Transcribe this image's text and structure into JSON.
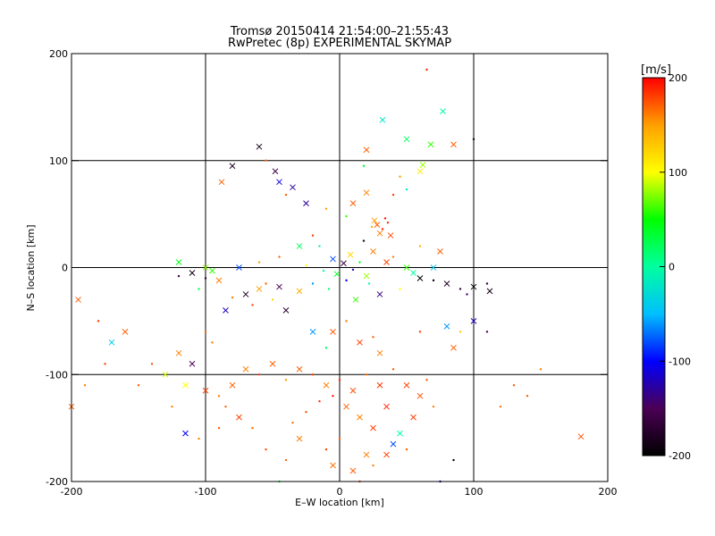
{
  "chart_data": {
    "type": "scatter",
    "title": "Tromsø 20150414 21:54:00–21:55:43",
    "subtitle": "RwPretec (8p) EXPERIMENTAL SKYMAP",
    "xlabel": "E–W location [km]",
    "ylabel": "N–S location [km]",
    "xlim": [
      -200,
      200
    ],
    "ylim": [
      -200,
      200
    ],
    "x_ticks": [
      -200,
      -100,
      0,
      100,
      200
    ],
    "y_ticks": [
      -200,
      -100,
      0,
      100,
      200
    ],
    "grid": true,
    "colorbar": {
      "label": "[m/s]",
      "range": [
        -200,
        200
      ],
      "ticks": [
        200,
        100,
        0,
        -100,
        -200
      ],
      "colormap": [
        "#000000",
        "#4b0055",
        "#0000ff",
        "#00bfff",
        "#00ff9f",
        "#00ff00",
        "#ffff00",
        "#ff9f00",
        "#ff0000"
      ]
    },
    "markers": [
      "x",
      "dot"
    ],
    "points": [
      [
        3,
        4,
        -160,
        "x"
      ],
      [
        10,
        -2,
        -120,
        "dot"
      ],
      [
        -5,
        8,
        -80,
        "x"
      ],
      [
        15,
        5,
        40,
        "dot"
      ],
      [
        20,
        -8,
        80,
        "x"
      ],
      [
        -12,
        -3,
        0,
        "dot"
      ],
      [
        8,
        12,
        120,
        "x"
      ],
      [
        -20,
        -15,
        -60,
        "dot"
      ],
      [
        25,
        15,
        160,
        "x"
      ],
      [
        -8,
        -20,
        20,
        "dot"
      ],
      [
        30,
        -25,
        -140,
        "x"
      ],
      [
        -25,
        2,
        100,
        "dot"
      ],
      [
        12,
        -30,
        60,
        "x"
      ],
      [
        -15,
        20,
        -20,
        "dot"
      ],
      [
        35,
        5,
        180,
        "x"
      ],
      [
        5,
        -12,
        -100,
        "dot"
      ],
      [
        -30,
        -22,
        140,
        "x"
      ],
      [
        18,
        25,
        -180,
        "dot"
      ],
      [
        -2,
        -6,
        40,
        "x"
      ],
      [
        22,
        -15,
        0,
        "dot"
      ],
      [
        28,
        40,
        170,
        "x"
      ],
      [
        32,
        36,
        190,
        "dot"
      ],
      [
        26,
        44,
        150,
        "x"
      ],
      [
        36,
        42,
        185,
        "dot"
      ],
      [
        30,
        32,
        160,
        "x"
      ],
      [
        24,
        38,
        140,
        "dot"
      ],
      [
        38,
        30,
        175,
        "x"
      ],
      [
        34,
        46,
        195,
        "dot"
      ],
      [
        -60,
        -20,
        150,
        "x"
      ],
      [
        -55,
        -15,
        170,
        "dot"
      ],
      [
        -70,
        -25,
        -180,
        "x"
      ],
      [
        -50,
        -30,
        120,
        "dot"
      ],
      [
        -45,
        -18,
        -150,
        "x"
      ],
      [
        -65,
        -35,
        180,
        "dot"
      ],
      [
        -40,
        -40,
        -170,
        "x"
      ],
      [
        -80,
        -28,
        160,
        "dot"
      ],
      [
        60,
        -10,
        -200,
        "x"
      ],
      [
        70,
        -12,
        -190,
        "dot"
      ],
      [
        80,
        -15,
        -180,
        "x"
      ],
      [
        90,
        -20,
        -160,
        "dot"
      ],
      [
        100,
        -18,
        -195,
        "x"
      ],
      [
        110,
        -15,
        -170,
        "dot"
      ],
      [
        112,
        -22,
        -185,
        "x"
      ],
      [
        95,
        -25,
        -140,
        "dot"
      ],
      [
        -110,
        -5,
        -190,
        "x"
      ],
      [
        -100,
        -10,
        -175,
        "dot"
      ],
      [
        -95,
        -3,
        60,
        "x"
      ],
      [
        -120,
        -8,
        -160,
        "dot"
      ],
      [
        -90,
        -12,
        160,
        "x"
      ],
      [
        -105,
        -20,
        30,
        "dot"
      ],
      [
        -30,
        -95,
        170,
        "x"
      ],
      [
        -20,
        -100,
        180,
        "dot"
      ],
      [
        -10,
        -110,
        160,
        "x"
      ],
      [
        0,
        -105,
        190,
        "dot"
      ],
      [
        10,
        -115,
        175,
        "x"
      ],
      [
        20,
        -100,
        165,
        "dot"
      ],
      [
        30,
        -110,
        185,
        "x"
      ],
      [
        -40,
        -105,
        150,
        "dot"
      ],
      [
        -50,
        -90,
        170,
        "x"
      ],
      [
        -60,
        -100,
        180,
        "dot"
      ],
      [
        -70,
        -95,
        160,
        "x"
      ],
      [
        40,
        -95,
        170,
        "dot"
      ],
      [
        50,
        -110,
        180,
        "x"
      ],
      [
        -5,
        -120,
        195,
        "dot"
      ],
      [
        5,
        -130,
        170,
        "x"
      ],
      [
        -15,
        -125,
        185,
        "dot"
      ],
      [
        15,
        -140,
        160,
        "x"
      ],
      [
        -25,
        -135,
        175,
        "dot"
      ],
      [
        25,
        -150,
        180,
        "x"
      ],
      [
        -35,
        -145,
        165,
        "dot"
      ],
      [
        35,
        -130,
        190,
        "x"
      ],
      [
        0,
        -160,
        170,
        "dot"
      ],
      [
        20,
        -175,
        160,
        "x"
      ],
      [
        -10,
        -170,
        180,
        "dot"
      ],
      [
        -80,
        -110,
        170,
        "x"
      ],
      [
        -90,
        -120,
        160,
        "dot"
      ],
      [
        -100,
        -115,
        180,
        "x"
      ],
      [
        -85,
        -130,
        170,
        "dot"
      ],
      [
        60,
        -120,
        175,
        "x"
      ],
      [
        70,
        -130,
        160,
        "dot"
      ],
      [
        55,
        -140,
        180,
        "x"
      ],
      [
        65,
        -105,
        170,
        "dot"
      ],
      [
        -120,
        -80,
        160,
        "x"
      ],
      [
        -140,
        -90,
        175,
        "dot"
      ],
      [
        -160,
        -60,
        170,
        "x"
      ],
      [
        -180,
        -50,
        180,
        "dot"
      ],
      [
        -195,
        -30,
        170,
        "x"
      ],
      [
        -170,
        -70,
        -40,
        "x"
      ],
      [
        -130,
        -100,
        90,
        "x"
      ],
      [
        -200,
        -130,
        170,
        "x"
      ],
      [
        -190,
        -110,
        160,
        "dot"
      ],
      [
        -175,
        -90,
        180,
        "dot"
      ],
      [
        -150,
        -110,
        170,
        "dot"
      ],
      [
        -125,
        -130,
        160,
        "dot"
      ],
      [
        180,
        -158,
        175,
        "x"
      ],
      [
        140,
        -120,
        170,
        "dot"
      ],
      [
        150,
        -95,
        160,
        "dot"
      ],
      [
        120,
        -130,
        165,
        "dot"
      ],
      [
        130,
        -110,
        170,
        "dot"
      ],
      [
        65,
        185,
        190,
        "dot"
      ],
      [
        77,
        146,
        0,
        "x"
      ],
      [
        32,
        138,
        -20,
        "x"
      ],
      [
        50,
        120,
        20,
        "x"
      ],
      [
        68,
        115,
        60,
        "x"
      ],
      [
        100,
        120,
        -200,
        "dot"
      ],
      [
        85,
        115,
        170,
        "x"
      ],
      [
        -45,
        80,
        -110,
        "x"
      ],
      [
        -35,
        75,
        -130,
        "x"
      ],
      [
        -48,
        90,
        -160,
        "x"
      ],
      [
        -55,
        100,
        170,
        "dot"
      ],
      [
        -60,
        113,
        -190,
        "x"
      ],
      [
        -80,
        95,
        -180,
        "x"
      ],
      [
        -88,
        80,
        170,
        "x"
      ],
      [
        -40,
        68,
        170,
        "dot"
      ],
      [
        -25,
        60,
        -130,
        "x"
      ],
      [
        -10,
        55,
        150,
        "dot"
      ],
      [
        5,
        48,
        60,
        "dot"
      ],
      [
        10,
        60,
        170,
        "x"
      ],
      [
        20,
        70,
        160,
        "x"
      ],
      [
        40,
        68,
        180,
        "dot"
      ],
      [
        60,
        90,
        110,
        "x"
      ],
      [
        62,
        96,
        80,
        "x"
      ],
      [
        45,
        85,
        150,
        "dot"
      ],
      [
        18,
        95,
        40,
        "dot"
      ],
      [
        20,
        110,
        170,
        "x"
      ],
      [
        50,
        73,
        -20,
        "dot"
      ],
      [
        -120,
        5,
        40,
        "x"
      ],
      [
        -100,
        0,
        80,
        "x"
      ],
      [
        -60,
        5,
        150,
        "dot"
      ],
      [
        -75,
        0,
        -80,
        "x"
      ],
      [
        -45,
        10,
        170,
        "dot"
      ],
      [
        -30,
        20,
        20,
        "x"
      ],
      [
        -20,
        30,
        180,
        "dot"
      ],
      [
        40,
        10,
        160,
        "dot"
      ],
      [
        50,
        0,
        60,
        "x"
      ],
      [
        60,
        20,
        140,
        "dot"
      ],
      [
        55,
        -5,
        0,
        "x"
      ],
      [
        45,
        -20,
        100,
        "dot"
      ],
      [
        70,
        0,
        -40,
        "x"
      ],
      [
        75,
        15,
        170,
        "x"
      ],
      [
        -5,
        -60,
        170,
        "x"
      ],
      [
        5,
        -50,
        160,
        "dot"
      ],
      [
        15,
        -70,
        180,
        "x"
      ],
      [
        25,
        -65,
        170,
        "dot"
      ],
      [
        30,
        -80,
        160,
        "x"
      ],
      [
        -20,
        -60,
        -60,
        "x"
      ],
      [
        -10,
        -75,
        20,
        "dot"
      ],
      [
        60,
        -60,
        180,
        "dot"
      ],
      [
        80,
        -55,
        -60,
        "x"
      ],
      [
        90,
        -60,
        130,
        "dot"
      ],
      [
        100,
        -50,
        -120,
        "x"
      ],
      [
        110,
        -60,
        -150,
        "dot"
      ],
      [
        85,
        -75,
        170,
        "x"
      ],
      [
        -85,
        -40,
        -120,
        "x"
      ],
      [
        -100,
        -60,
        170,
        "dot"
      ],
      [
        -110,
        -90,
        -150,
        "x"
      ],
      [
        -115,
        -110,
        100,
        "x"
      ],
      [
        -95,
        -70,
        160,
        "dot"
      ],
      [
        -40,
        -180,
        170,
        "dot"
      ],
      [
        -30,
        -160,
        160,
        "x"
      ],
      [
        -45,
        -200,
        40,
        "dot"
      ],
      [
        75,
        -200,
        -120,
        "dot"
      ],
      [
        40,
        -165,
        -80,
        "x"
      ],
      [
        45,
        -155,
        0,
        "x"
      ],
      [
        85,
        -180,
        -200,
        "dot"
      ],
      [
        -55,
        -170,
        175,
        "dot"
      ],
      [
        -65,
        -150,
        165,
        "dot"
      ],
      [
        -75,
        -140,
        180,
        "x"
      ],
      [
        -90,
        -150,
        170,
        "dot"
      ],
      [
        -105,
        -160,
        160,
        "dot"
      ],
      [
        -115,
        -155,
        -100,
        "x"
      ],
      [
        10,
        -190,
        170,
        "x"
      ],
      [
        25,
        -185,
        160,
        "dot"
      ],
      [
        35,
        -175,
        180,
        "x"
      ],
      [
        50,
        -170,
        170,
        "dot"
      ],
      [
        -5,
        -185,
        165,
        "x"
      ],
      [
        15,
        -200,
        175,
        "dot"
      ]
    ]
  }
}
